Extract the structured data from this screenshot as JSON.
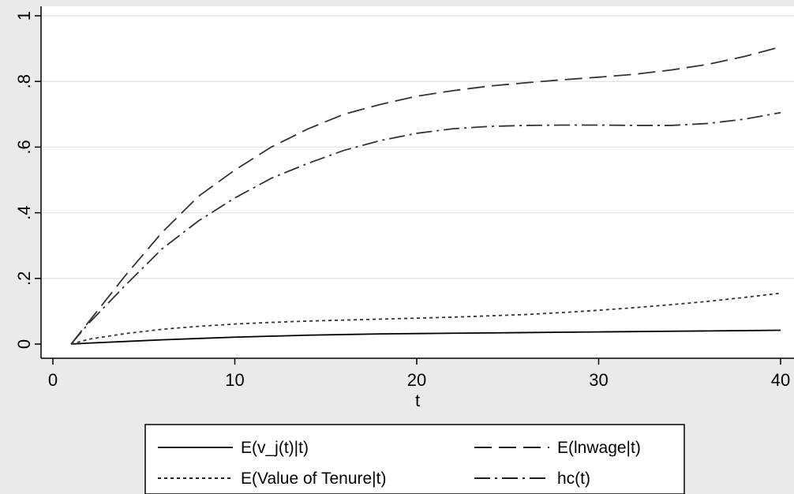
{
  "chart_data": {
    "type": "line",
    "title": "",
    "xlabel": "t",
    "ylabel": "",
    "xlim": [
      1,
      40
    ],
    "ylim": [
      0,
      1
    ],
    "xticks": [
      0,
      10,
      20,
      30,
      40
    ],
    "xtick_labels": [
      "0",
      "10",
      "20",
      "30",
      "40"
    ],
    "yticks": [
      0,
      0.2,
      0.4,
      0.6,
      0.8,
      1
    ],
    "ytick_labels": [
      "0",
      ".2",
      ".4",
      ".6",
      ".8",
      "1"
    ],
    "grid": "horizontal",
    "legend_position": "bottom",
    "x": [
      1,
      2,
      4,
      6,
      8,
      10,
      12,
      14,
      16,
      18,
      20,
      22,
      24,
      26,
      28,
      30,
      32,
      34,
      36,
      38,
      40
    ],
    "series": [
      {
        "name": "E(v_j(t)|t)",
        "style": "solid",
        "values": [
          0.0,
          0.003,
          0.008,
          0.013,
          0.017,
          0.021,
          0.024,
          0.027,
          0.029,
          0.031,
          0.032,
          0.033,
          0.034,
          0.035,
          0.036,
          0.037,
          0.038,
          0.039,
          0.04,
          0.041,
          0.042
        ]
      },
      {
        "name": "E(lnwage|t)",
        "style": "longdash",
        "values": [
          0.0,
          0.07,
          0.21,
          0.34,
          0.45,
          0.53,
          0.6,
          0.655,
          0.7,
          0.73,
          0.755,
          0.772,
          0.786,
          0.796,
          0.805,
          0.813,
          0.822,
          0.835,
          0.852,
          0.876,
          0.905
        ]
      },
      {
        "name": "E(Value of Tenure|t)",
        "style": "shortdash",
        "values": [
          0.0,
          0.015,
          0.032,
          0.045,
          0.054,
          0.061,
          0.066,
          0.07,
          0.073,
          0.076,
          0.079,
          0.082,
          0.086,
          0.09,
          0.096,
          0.103,
          0.111,
          0.12,
          0.13,
          0.142,
          0.155
        ]
      },
      {
        "name": "hc(t)",
        "style": "dashdot",
        "values": [
          0.0,
          0.065,
          0.18,
          0.29,
          0.375,
          0.445,
          0.505,
          0.55,
          0.59,
          0.62,
          0.642,
          0.656,
          0.663,
          0.666,
          0.667,
          0.667,
          0.666,
          0.666,
          0.672,
          0.685,
          0.705
        ]
      }
    ]
  }
}
